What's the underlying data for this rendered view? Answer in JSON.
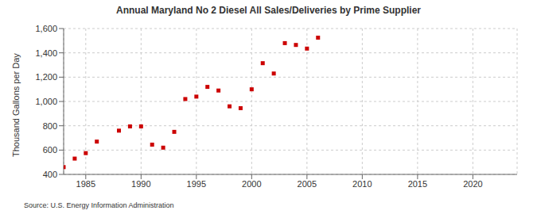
{
  "chart_data": {
    "type": "scatter",
    "title": "Annual Maryland No 2 Diesel All Sales/Deliveries by Prime Supplier",
    "y_label": "Thousand Gallons per Day",
    "source": "Source: U.S. Energy Information Administration",
    "x": [
      1983,
      1984,
      1985,
      1986,
      1988,
      1989,
      1990,
      1991,
      1992,
      1993,
      1994,
      1995,
      1996,
      1997,
      1998,
      1999,
      2000,
      2001,
      2002,
      2003,
      2004,
      2005,
      2006
    ],
    "values": [
      460,
      530,
      575,
      670,
      760,
      795,
      795,
      645,
      620,
      750,
      1020,
      1040,
      1120,
      1090,
      960,
      945,
      1100,
      1315,
      1230,
      1480,
      1465,
      1435,
      1525
    ],
    "color": "#cc0000",
    "marker": "square",
    "xlim": [
      1983,
      2024
    ],
    "xticks": [
      1985,
      1990,
      1995,
      2000,
      2005,
      2010,
      2015,
      2020
    ],
    "ylim": [
      400,
      1600
    ],
    "yticks": [
      400,
      600,
      800,
      {
        "value": 1000,
        "label": "1,000"
      },
      {
        "value": 1200,
        "label": "1,200"
      },
      {
        "value": 1400,
        "label": "1,400"
      },
      {
        "value": 1600,
        "label": "1,600"
      }
    ],
    "grid": true
  }
}
